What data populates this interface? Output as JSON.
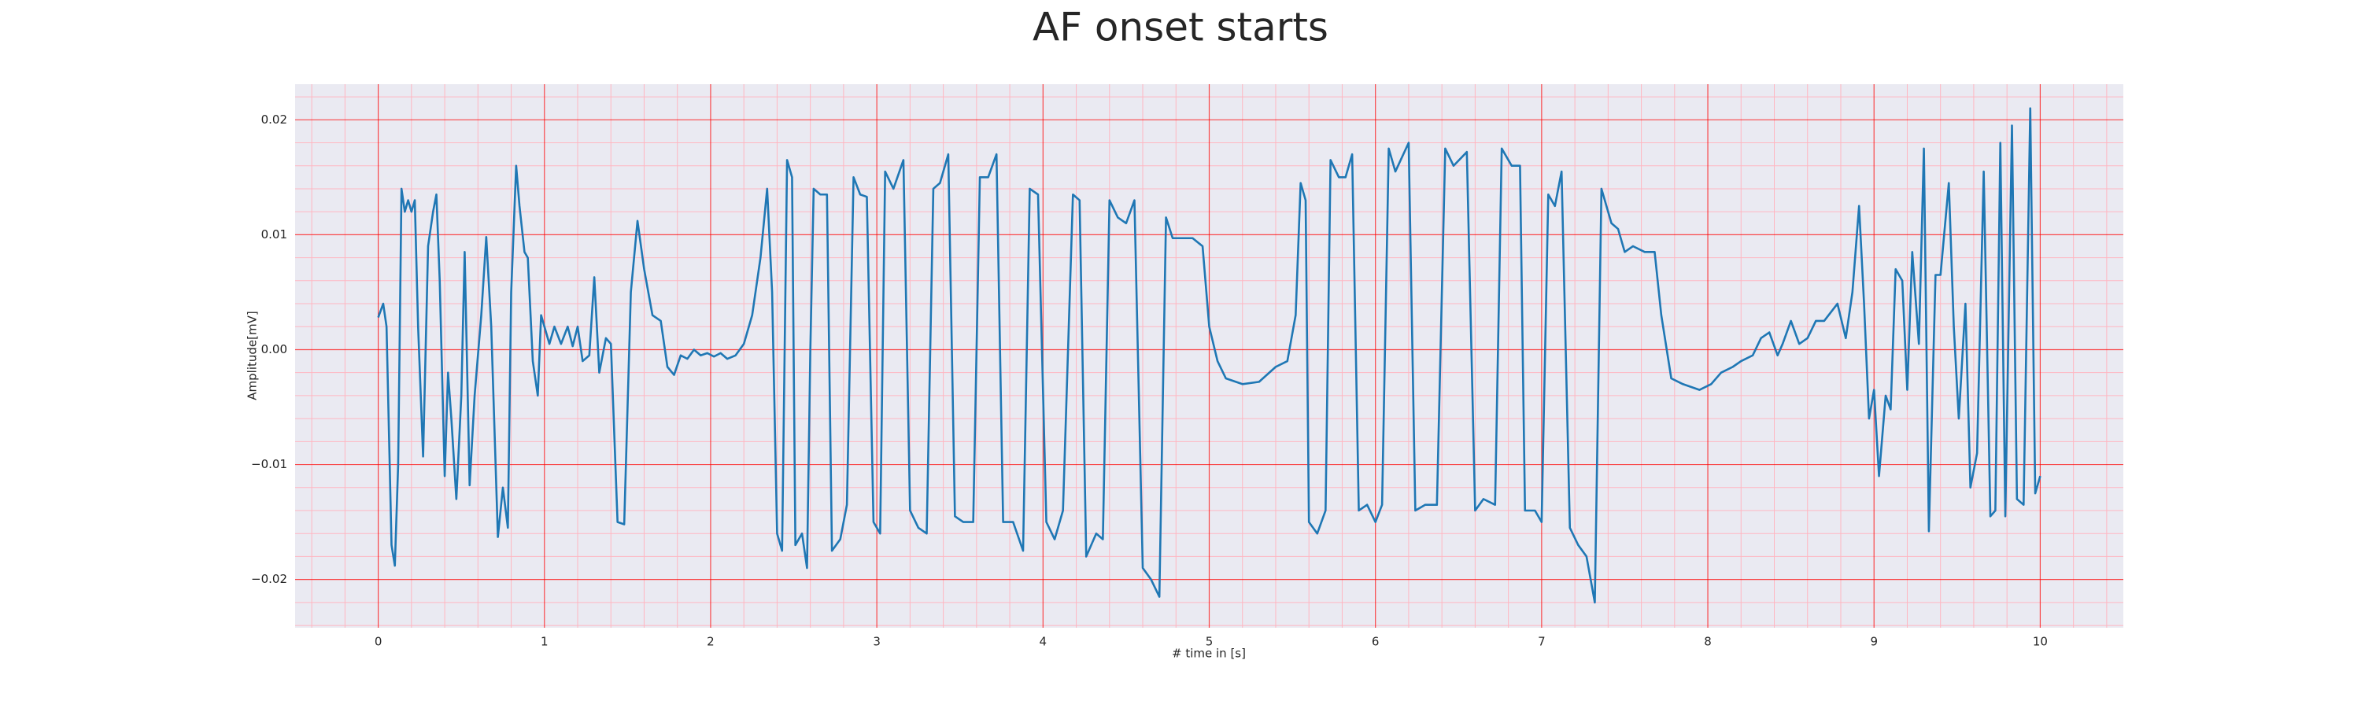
{
  "chart_data": {
    "type": "line",
    "title": "AF onset starts",
    "xlabel": "# time in [s]",
    "ylabel": "Amplitude[mV]",
    "xlim": [
      -0.5,
      10.5
    ],
    "ylim": [
      -0.0242,
      0.0231
    ],
    "xticks": [
      0,
      1,
      2,
      3,
      4,
      5,
      6,
      7,
      8,
      9,
      10
    ],
    "yticks": [
      {
        "value": -0.02,
        "label": "−0.02"
      },
      {
        "value": -0.01,
        "label": "−0.01"
      },
      {
        "value": 0,
        "label": "0.00"
      },
      0.01,
      0.02
    ],
    "grid": true,
    "minor_divisions": 5,
    "background": "#eaeaf2",
    "grid_color": "#ff0000",
    "minor_grid_color": "#ffb6c1",
    "x": [
      0.0,
      0.03,
      0.05,
      0.08,
      0.1,
      0.12,
      0.14,
      0.16,
      0.18,
      0.2,
      0.22,
      0.24,
      0.27,
      0.3,
      0.33,
      0.35,
      0.37,
      0.4,
      0.42,
      0.44,
      0.47,
      0.5,
      0.52,
      0.55,
      0.58,
      0.62,
      0.65,
      0.68,
      0.72,
      0.75,
      0.78,
      0.8,
      0.83,
      0.85,
      0.88,
      0.9,
      0.93,
      0.96,
      0.98,
      1.0,
      1.03,
      1.06,
      1.1,
      1.14,
      1.17,
      1.2,
      1.23,
      1.27,
      1.3,
      1.33,
      1.37,
      1.4,
      1.44,
      1.48,
      1.52,
      1.56,
      1.6,
      1.65,
      1.7,
      1.74,
      1.78,
      1.82,
      1.86,
      1.9,
      1.94,
      1.98,
      2.02,
      2.06,
      2.1,
      2.15,
      2.2,
      2.25,
      2.3,
      2.34,
      2.37,
      2.4,
      2.43,
      2.46,
      2.49,
      2.51,
      2.55,
      2.58,
      2.6,
      2.62,
      2.66,
      2.7,
      2.73,
      2.78,
      2.82,
      2.86,
      2.9,
      2.94,
      2.98,
      3.02,
      3.05,
      3.1,
      3.16,
      3.2,
      3.25,
      3.3,
      3.34,
      3.38,
      3.43,
      3.47,
      3.52,
      3.58,
      3.62,
      3.67,
      3.72,
      3.76,
      3.82,
      3.88,
      3.92,
      3.97,
      4.02,
      4.07,
      4.12,
      4.18,
      4.22,
      4.26,
      4.32,
      4.36,
      4.4,
      4.45,
      4.5,
      4.55,
      4.6,
      4.65,
      4.7,
      4.74,
      4.78,
      4.85,
      4.9,
      4.96,
      5.0,
      5.05,
      5.1,
      5.2,
      5.3,
      5.4,
      5.47,
      5.52,
      5.55,
      5.58,
      5.6,
      5.65,
      5.7,
      5.73,
      5.78,
      5.82,
      5.86,
      5.9,
      5.95,
      6.0,
      6.04,
      6.08,
      6.12,
      6.2,
      6.24,
      6.3,
      6.37,
      6.42,
      6.47,
      6.55,
      6.6,
      6.65,
      6.72,
      6.76,
      6.82,
      6.87,
      6.9,
      6.96,
      7.0,
      7.04,
      7.08,
      7.12,
      7.17,
      7.22,
      7.27,
      7.32,
      7.36,
      7.42,
      7.46,
      7.5,
      7.55,
      7.62,
      7.68,
      7.72,
      7.78,
      7.85,
      7.95,
      8.02,
      8.08,
      8.15,
      8.2,
      8.27,
      8.32,
      8.37,
      8.42,
      8.45,
      8.5,
      8.55,
      8.6,
      8.65,
      8.7,
      8.78,
      8.83,
      8.87,
      8.91,
      8.94,
      8.97,
      9.0,
      9.03,
      9.07,
      9.1,
      9.13,
      9.17,
      9.2,
      9.23,
      9.27,
      9.3,
      9.33,
      9.37,
      9.4,
      9.45,
      9.48,
      9.51,
      9.55,
      9.58,
      9.62,
      9.66,
      9.7,
      9.73,
      9.76,
      9.79,
      9.83,
      9.86,
      9.9,
      9.94,
      9.97,
      10.0
    ],
    "series": [
      {
        "color": "#1f77b4",
        "values": [
          0.0028,
          0.004,
          0.002,
          -0.017,
          -0.0188,
          -0.01,
          0.014,
          0.012,
          0.013,
          0.012,
          0.013,
          0.002,
          -0.0093,
          0.009,
          0.012,
          0.0135,
          0.006,
          -0.011,
          -0.002,
          -0.006,
          -0.013,
          -0.004,
          0.0085,
          -0.0118,
          -0.004,
          0.003,
          0.0098,
          0.002,
          -0.0163,
          -0.012,
          -0.0155,
          0.005,
          0.016,
          0.0125,
          0.0085,
          0.008,
          -0.001,
          -0.004,
          0.003,
          0.002,
          0.0005,
          0.002,
          0.0005,
          0.002,
          0.0003,
          0.002,
          -0.001,
          -0.0005,
          0.0063,
          -0.002,
          0.001,
          0.0005,
          -0.015,
          -0.0152,
          0.005,
          0.0112,
          0.007,
          0.003,
          0.0025,
          -0.0015,
          -0.0022,
          -0.0005,
          -0.0008,
          0.0,
          -0.0005,
          -0.0003,
          -0.0006,
          -0.0003,
          -0.0008,
          -0.0005,
          0.0005,
          0.003,
          0.008,
          0.014,
          0.005,
          -0.016,
          -0.0175,
          0.0165,
          0.015,
          -0.017,
          -0.016,
          -0.019,
          0.0,
          0.014,
          0.0135,
          0.0135,
          -0.0175,
          -0.0165,
          -0.0135,
          0.015,
          0.0135,
          0.0133,
          -0.015,
          -0.016,
          0.0155,
          0.014,
          0.0165,
          -0.014,
          -0.0155,
          -0.016,
          0.014,
          0.0145,
          0.017,
          -0.0145,
          -0.015,
          -0.015,
          0.015,
          0.015,
          0.017,
          -0.015,
          -0.015,
          -0.0175,
          0.014,
          0.0135,
          -0.015,
          -0.0165,
          -0.014,
          0.0135,
          0.013,
          -0.018,
          -0.016,
          -0.0165,
          0.013,
          0.0115,
          0.011,
          0.013,
          -0.019,
          -0.02,
          -0.0215,
          0.0115,
          0.0097,
          0.0097,
          0.0097,
          0.009,
          0.002,
          -0.001,
          -0.0025,
          -0.003,
          -0.0028,
          -0.0015,
          -0.001,
          0.003,
          0.0145,
          0.013,
          -0.015,
          -0.016,
          -0.014,
          0.0165,
          0.015,
          0.015,
          0.017,
          -0.014,
          -0.0135,
          -0.015,
          -0.0135,
          0.0175,
          0.0155,
          0.018,
          -0.014,
          -0.0135,
          -0.0135,
          0.0175,
          0.016,
          0.0172,
          -0.014,
          -0.013,
          -0.0135,
          0.0175,
          0.016,
          0.016,
          -0.014,
          -0.014,
          -0.015,
          0.0135,
          0.0125,
          0.0155,
          -0.0155,
          -0.017,
          -0.018,
          -0.022,
          0.014,
          0.011,
          0.0105,
          0.0085,
          0.009,
          0.0085,
          0.0085,
          0.003,
          -0.0025,
          -0.003,
          -0.0035,
          -0.003,
          -0.002,
          -0.0015,
          -0.001,
          -0.0005,
          0.001,
          0.0015,
          -0.0005,
          0.0005,
          0.0025,
          0.0005,
          0.001,
          0.0025,
          0.0025,
          0.004,
          0.001,
          0.005,
          0.0125,
          0.004,
          -0.006,
          -0.0035,
          -0.011,
          -0.004,
          -0.0052,
          0.007,
          0.006,
          -0.0035,
          0.0085,
          0.0005,
          0.0175,
          -0.0158,
          0.0065,
          0.0065,
          0.0145,
          0.002,
          -0.006,
          0.004,
          -0.012,
          -0.009,
          0.0155,
          -0.0145,
          -0.014,
          0.018,
          -0.0145,
          0.0195,
          -0.013,
          -0.0135,
          0.021,
          -0.0125,
          -0.011
        ]
      }
    ]
  }
}
